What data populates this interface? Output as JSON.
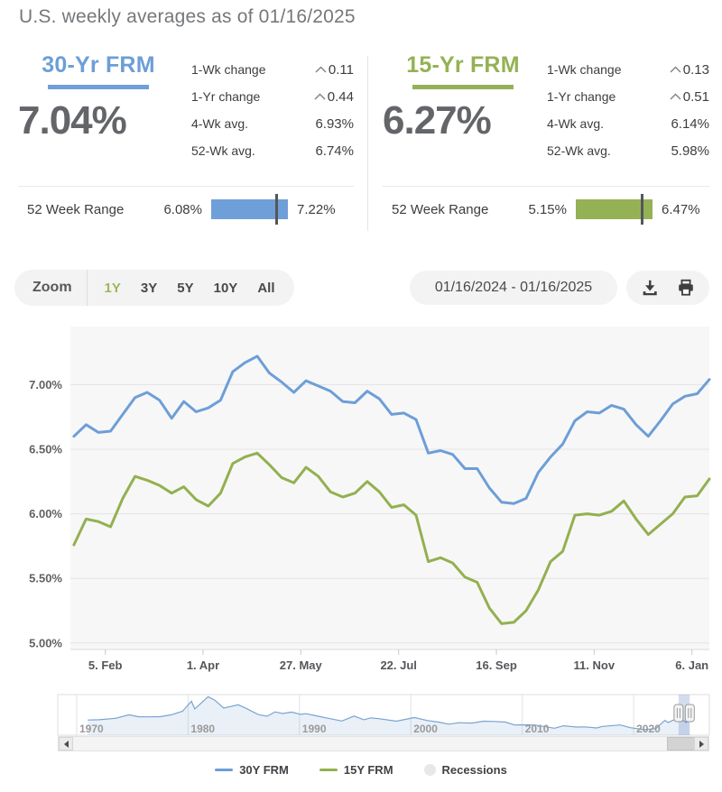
{
  "page_title": "U.S. weekly averages as of 01/16/2025",
  "colors": {
    "blue": "#6d9ed7",
    "green": "#93b050",
    "rate_text": "#636569",
    "recession": "#e8e8e8"
  },
  "cards": [
    {
      "name": "30-Yr FRM",
      "rate": "7.04%",
      "stats": [
        {
          "label": "1-Wk change",
          "value": "0.11",
          "direction": "up"
        },
        {
          "label": "1-Yr change",
          "value": "0.44",
          "direction": "up"
        },
        {
          "label": "4-Wk avg.",
          "value": "6.93%"
        },
        {
          "label": "52-Wk avg.",
          "value": "6.74%"
        }
      ],
      "range": {
        "label": "52 Week Range",
        "min": "6.08%",
        "max": "7.22%",
        "marker_pct": 84
      }
    },
    {
      "name": "15-Yr FRM",
      "rate": "6.27%",
      "stats": [
        {
          "label": "1-Wk change",
          "value": "0.13",
          "direction": "up"
        },
        {
          "label": "1-Yr change",
          "value": "0.51",
          "direction": "up"
        },
        {
          "label": "4-Wk avg.",
          "value": "6.14%"
        },
        {
          "label": "52-Wk avg.",
          "value": "5.98%"
        }
      ],
      "range": {
        "label": "52 Week Range",
        "min": "5.15%",
        "max": "6.47%",
        "marker_pct": 85
      }
    }
  ],
  "toolbar": {
    "zoom_label": "Zoom",
    "ranges": [
      "1Y",
      "3Y",
      "5Y",
      "10Y",
      "All"
    ],
    "active_range": "1Y",
    "date_range": "01/16/2024 - 01/16/2025",
    "icons": [
      "download-icon",
      "print-icon"
    ]
  },
  "chart_data": {
    "type": "line",
    "title": "U.S. weekly average mortgage rates, 1Y view",
    "main": {
      "ylim": [
        4.95,
        7.45
      ],
      "grid": true,
      "yticks": [
        {
          "v": 5.0,
          "label": "5.00%"
        },
        {
          "v": 5.5,
          "label": "5.50%"
        },
        {
          "v": 6.0,
          "label": "6.00%"
        },
        {
          "v": 6.5,
          "label": "6.50%"
        },
        {
          "v": 7.0,
          "label": "7.00%"
        }
      ],
      "total_days": 366,
      "first_day": 2,
      "day_step": 7,
      "xticks": [
        {
          "day": 20,
          "label": "5. Feb"
        },
        {
          "day": 76,
          "label": "1. Apr"
        },
        {
          "day": 132,
          "label": "27. May"
        },
        {
          "day": 188,
          "label": "22. Jul"
        },
        {
          "day": 244,
          "label": "16. Sep"
        },
        {
          "day": 300,
          "label": "11. Nov"
        },
        {
          "day": 356,
          "label": "6. Jan"
        }
      ],
      "series": [
        {
          "name": "30Y FRM",
          "color": "#6d9ed7",
          "values": [
            6.6,
            6.69,
            6.63,
            6.64,
            6.77,
            6.9,
            6.94,
            6.88,
            6.74,
            6.87,
            6.79,
            6.82,
            6.88,
            7.1,
            7.17,
            7.22,
            7.09,
            7.02,
            6.94,
            7.03,
            6.99,
            6.95,
            6.87,
            6.86,
            6.95,
            6.89,
            6.77,
            6.78,
            6.73,
            6.47,
            6.49,
            6.46,
            6.35,
            6.35,
            6.2,
            6.09,
            6.08,
            6.12,
            6.32,
            6.44,
            6.54,
            6.72,
            6.79,
            6.78,
            6.84,
            6.81,
            6.69,
            6.6,
            6.72,
            6.85,
            6.91,
            6.93,
            7.04
          ]
        },
        {
          "name": "15Y FRM",
          "color": "#93b050",
          "values": [
            5.76,
            5.96,
            5.94,
            5.9,
            6.12,
            6.29,
            6.26,
            6.22,
            6.16,
            6.21,
            6.11,
            6.06,
            6.16,
            6.39,
            6.44,
            6.47,
            6.38,
            6.28,
            6.24,
            6.36,
            6.29,
            6.17,
            6.13,
            6.16,
            6.25,
            6.17,
            6.05,
            6.07,
            5.99,
            5.63,
            5.66,
            5.62,
            5.51,
            5.47,
            5.27,
            5.15,
            5.16,
            5.25,
            5.41,
            5.63,
            5.71,
            5.99,
            6.0,
            5.99,
            6.02,
            6.1,
            5.96,
            5.84,
            5.92,
            6.0,
            6.13,
            6.14,
            6.27
          ]
        }
      ]
    },
    "navigator": {
      "type": "area",
      "series_name": "30Y FRM history",
      "x_range": [
        1968.3,
        2026.8
      ],
      "y_range": [
        0,
        19.5
      ],
      "decades": [
        {
          "x": 1970,
          "label": "1970"
        },
        {
          "x": 1980,
          "label": "1980"
        },
        {
          "x": 1990,
          "label": "1990"
        },
        {
          "x": 2000,
          "label": "2000"
        },
        {
          "x": 2010,
          "label": "2010"
        },
        {
          "x": 2020,
          "label": "2020"
        }
      ],
      "points": [
        [
          1971.0,
          7.3
        ],
        [
          1972.0,
          7.4
        ],
        [
          1973.5,
          8.1
        ],
        [
          1974.7,
          9.8
        ],
        [
          1975.5,
          8.9
        ],
        [
          1976.5,
          8.8
        ],
        [
          1977.5,
          8.9
        ],
        [
          1978.5,
          9.8
        ],
        [
          1979.5,
          11.5
        ],
        [
          1980.3,
          16.3
        ],
        [
          1980.6,
          12.6
        ],
        [
          1981.2,
          15.5
        ],
        [
          1981.8,
          18.5
        ],
        [
          1982.4,
          16.8
        ],
        [
          1983.2,
          13.0
        ],
        [
          1984.5,
          14.6
        ],
        [
          1985.2,
          12.9
        ],
        [
          1986.3,
          9.9
        ],
        [
          1987.1,
          9.1
        ],
        [
          1987.8,
          11.2
        ],
        [
          1988.5,
          10.4
        ],
        [
          1989.3,
          11.1
        ],
        [
          1990.1,
          10.0
        ],
        [
          1990.6,
          10.3
        ],
        [
          1991.5,
          9.3
        ],
        [
          1992.5,
          8.2
        ],
        [
          1993.8,
          6.8
        ],
        [
          1994.9,
          9.2
        ],
        [
          1995.8,
          7.4
        ],
        [
          1996.4,
          8.3
        ],
        [
          1997.2,
          7.9
        ],
        [
          1998.7,
          6.7
        ],
        [
          1999.5,
          7.6
        ],
        [
          2000.3,
          8.5
        ],
        [
          2001.5,
          7.0
        ],
        [
          2002.5,
          6.3
        ],
        [
          2003.4,
          5.3
        ],
        [
          2004.3,
          6.0
        ],
        [
          2005.5,
          5.8
        ],
        [
          2006.5,
          6.7
        ],
        [
          2007.5,
          6.6
        ],
        [
          2008.5,
          6.3
        ],
        [
          2009.3,
          4.9
        ],
        [
          2010.2,
          5.0
        ],
        [
          2011.1,
          4.9
        ],
        [
          2012.9,
          3.35
        ],
        [
          2013.7,
          4.5
        ],
        [
          2014.9,
          3.9
        ],
        [
          2015.6,
          4.0
        ],
        [
          2016.7,
          3.45
        ],
        [
          2017.2,
          4.2
        ],
        [
          2018.8,
          4.9
        ],
        [
          2019.7,
          3.6
        ],
        [
          2021.0,
          2.65
        ],
        [
          2022.0,
          3.2
        ],
        [
          2022.8,
          7.1
        ],
        [
          2023.1,
          6.1
        ],
        [
          2023.8,
          7.8
        ],
        [
          2024.2,
          6.9
        ],
        [
          2024.4,
          7.2
        ],
        [
          2024.7,
          6.1
        ],
        [
          2025.04,
          7.04
        ]
      ],
      "selection": {
        "start": 2024.04,
        "end": 2025.04
      }
    }
  },
  "legend": [
    {
      "label": "30Y FRM",
      "swatch": "line-blue"
    },
    {
      "label": "15Y FRM",
      "swatch": "line-green"
    },
    {
      "label": "Recessions",
      "swatch": "circle-gray"
    }
  ]
}
